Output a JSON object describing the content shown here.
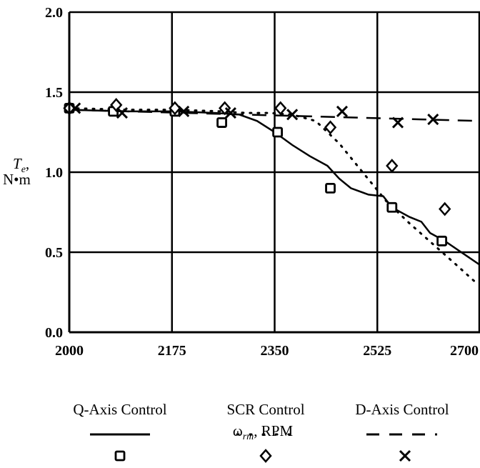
{
  "chart_data": {
    "type": "line",
    "xlabel": {
      "main": "ω",
      "sub": "rm",
      "rest": ", RPM"
    },
    "ylabel": {
      "main": "T",
      "sub": "e",
      "comma": ",",
      "unit": "N•m"
    },
    "x_ticks": [
      "2000",
      "2175",
      "2350",
      "2525",
      "2700"
    ],
    "y_ticks": [
      "0.0",
      "0.5",
      "1.0",
      "1.5",
      "2.0"
    ],
    "xlim": [
      2000,
      2700
    ],
    "ylim": [
      0,
      2
    ],
    "grid": true,
    "legend_position": "bottom",
    "series": [
      {
        "name": "Q-Axis Control",
        "line_style": "solid",
        "line": [
          [
            2000,
            1.39
          ],
          [
            2100,
            1.38
          ],
          [
            2180,
            1.38
          ],
          [
            2250,
            1.37
          ],
          [
            2290,
            1.36
          ],
          [
            2320,
            1.32
          ],
          [
            2350,
            1.25
          ],
          [
            2380,
            1.17
          ],
          [
            2410,
            1.1
          ],
          [
            2440,
            1.04
          ],
          [
            2460,
            0.96
          ],
          [
            2480,
            0.9
          ],
          [
            2510,
            0.86
          ],
          [
            2535,
            0.85
          ],
          [
            2550,
            0.78
          ],
          [
            2580,
            0.72
          ],
          [
            2600,
            0.69
          ],
          [
            2615,
            0.62
          ],
          [
            2640,
            0.57
          ],
          [
            2660,
            0.52
          ],
          [
            2680,
            0.47
          ],
          [
            2700,
            0.42
          ]
        ],
        "marker": "square",
        "points": [
          [
            2000,
            1.4
          ],
          [
            2075,
            1.38
          ],
          [
            2180,
            1.38
          ],
          [
            2260,
            1.31
          ],
          [
            2355,
            1.25
          ],
          [
            2445,
            0.9
          ],
          [
            2550,
            0.78
          ],
          [
            2635,
            0.57
          ]
        ]
      },
      {
        "name": "SCR Control",
        "line_style": "dotted",
        "line": [
          [
            2000,
            1.4
          ],
          [
            2100,
            1.39
          ],
          [
            2180,
            1.39
          ],
          [
            2260,
            1.38
          ],
          [
            2300,
            1.37
          ],
          [
            2340,
            1.37
          ],
          [
            2380,
            1.36
          ],
          [
            2420,
            1.32
          ],
          [
            2460,
            1.18
          ],
          [
            2500,
            1.0
          ],
          [
            2540,
            0.82
          ],
          [
            2580,
            0.68
          ],
          [
            2620,
            0.55
          ],
          [
            2660,
            0.42
          ],
          [
            2690,
            0.32
          ]
        ],
        "marker": "diamond",
        "points": [
          [
            2000,
            1.4
          ],
          [
            2080,
            1.42
          ],
          [
            2180,
            1.4
          ],
          [
            2265,
            1.4
          ],
          [
            2360,
            1.4
          ],
          [
            2445,
            1.28
          ],
          [
            2550,
            1.04
          ],
          [
            2640,
            0.77
          ]
        ]
      },
      {
        "name": "D-Axis Control",
        "line_style": "dashed",
        "line": [
          [
            2000,
            1.39
          ],
          [
            2100,
            1.38
          ],
          [
            2200,
            1.37
          ],
          [
            2300,
            1.36
          ],
          [
            2400,
            1.35
          ],
          [
            2500,
            1.34
          ],
          [
            2600,
            1.33
          ],
          [
            2700,
            1.32
          ]
        ],
        "marker": "x",
        "points": [
          [
            2010,
            1.4
          ],
          [
            2090,
            1.37
          ],
          [
            2195,
            1.38
          ],
          [
            2275,
            1.37
          ],
          [
            2380,
            1.36
          ],
          [
            2465,
            1.38
          ],
          [
            2560,
            1.31
          ],
          [
            2620,
            1.33
          ]
        ]
      }
    ]
  }
}
